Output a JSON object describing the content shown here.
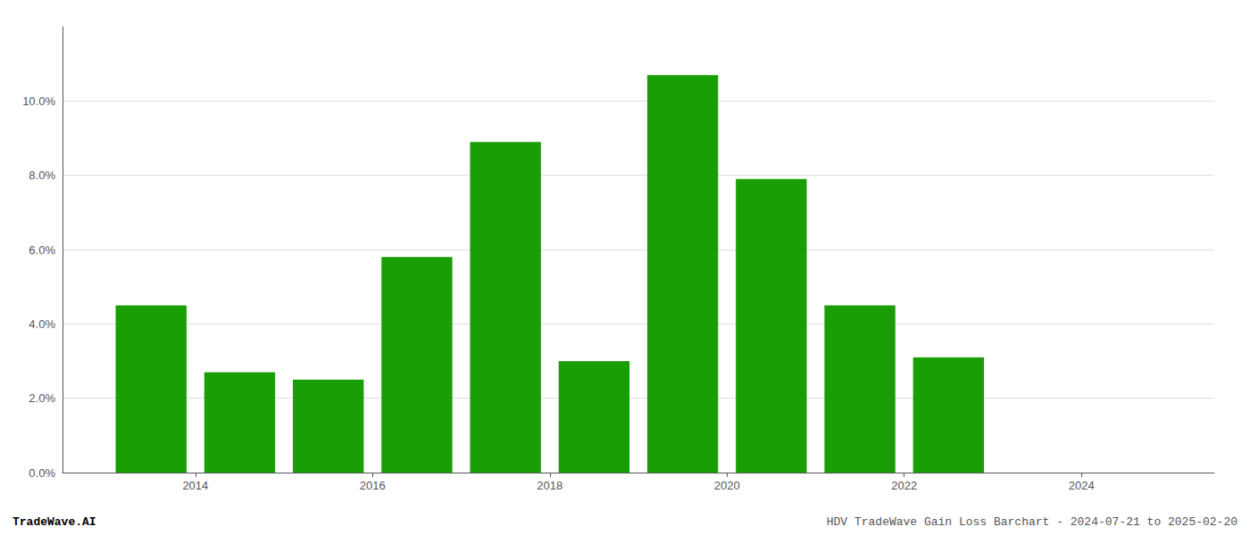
{
  "chart_data": {
    "type": "bar",
    "x": [
      2013.5,
      2014.5,
      2015.5,
      2016.5,
      2017.5,
      2018.5,
      2019.5,
      2020.5,
      2021.5,
      2022.5
    ],
    "values": [
      0.045,
      0.027,
      0.025,
      0.058,
      0.089,
      0.03,
      0.107,
      0.079,
      0.045,
      0.031
    ],
    "color": "#1a9e06",
    "xlim": [
      2012.5,
      2025.5
    ],
    "xticks": [
      2014,
      2016,
      2018,
      2020,
      2022,
      2024
    ],
    "ylim": [
      0,
      0.12
    ],
    "yticks": [
      {
        "value": 0.0,
        "label": "0.0%"
      },
      {
        "value": 0.02,
        "label": "2.0%"
      },
      {
        "value": 0.04,
        "label": "4.0%"
      },
      {
        "value": 0.06,
        "label": "6.0%"
      },
      {
        "value": 0.08,
        "label": "8.0%"
      },
      {
        "value": 0.1,
        "label": "10.0%"
      }
    ],
    "grid": true,
    "annotations": [
      "TradeWave.AI",
      "HDV TradeWave Gain Loss Barchart - 2024-07-21 to 2025-02-20"
    ]
  }
}
